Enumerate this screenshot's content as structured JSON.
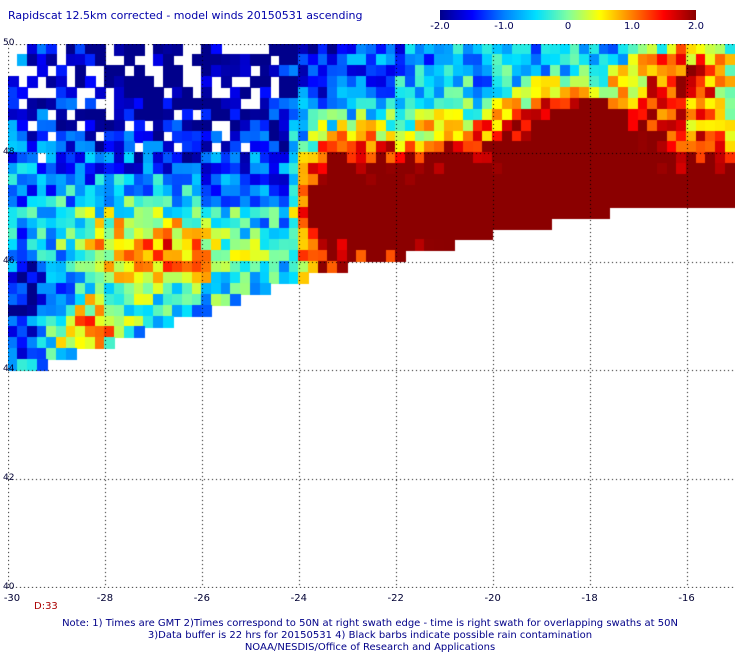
{
  "title": "Rapidscat 12.5km corrected - model winds 20150531 ascending",
  "colorbar": {
    "range": [
      -2.0,
      2.0
    ],
    "tick_labels": [
      "-2.0",
      "-1.0",
      "0",
      "1.0",
      "2.0"
    ],
    "tick_values": [
      -2.0,
      -1.0,
      0,
      1.0,
      2.0
    ],
    "colors": [
      "#00008b",
      "#0000ff",
      "#0080ff",
      "#00e0ff",
      "#80ffa0",
      "#ffff00",
      "#ff8000",
      "#ff0000",
      "#8b0000"
    ]
  },
  "map": {
    "lon_range": [
      -30,
      -15
    ],
    "lat_range": [
      40,
      50
    ],
    "lat_labels": [
      "50",
      "48",
      "46",
      "44",
      "42",
      "40"
    ],
    "lat_values": [
      50,
      48,
      46,
      44,
      42,
      40
    ],
    "lon_labels": [
      "-30",
      "-28",
      "-26",
      "-24",
      "-22",
      "-20",
      "-18",
      "-16"
    ],
    "lon_values": [
      -30,
      -28,
      -26,
      -24,
      -22,
      -20,
      -18,
      -16
    ],
    "grid": "dotted",
    "time_label": "D:33",
    "field": "wind speed difference (corrected - model), m/s"
  },
  "notes": [
    "Note: 1) Times are GMT 2)Times correspond to 50N at right swath edge - time is right swath for overlapping swaths at 50N",
    "3)Data buffer is 22 hrs for 20150531 4) Black barbs indicate possible rain contamination",
    "NOAA/NESDIS/Office of Research and Applications"
  ]
}
